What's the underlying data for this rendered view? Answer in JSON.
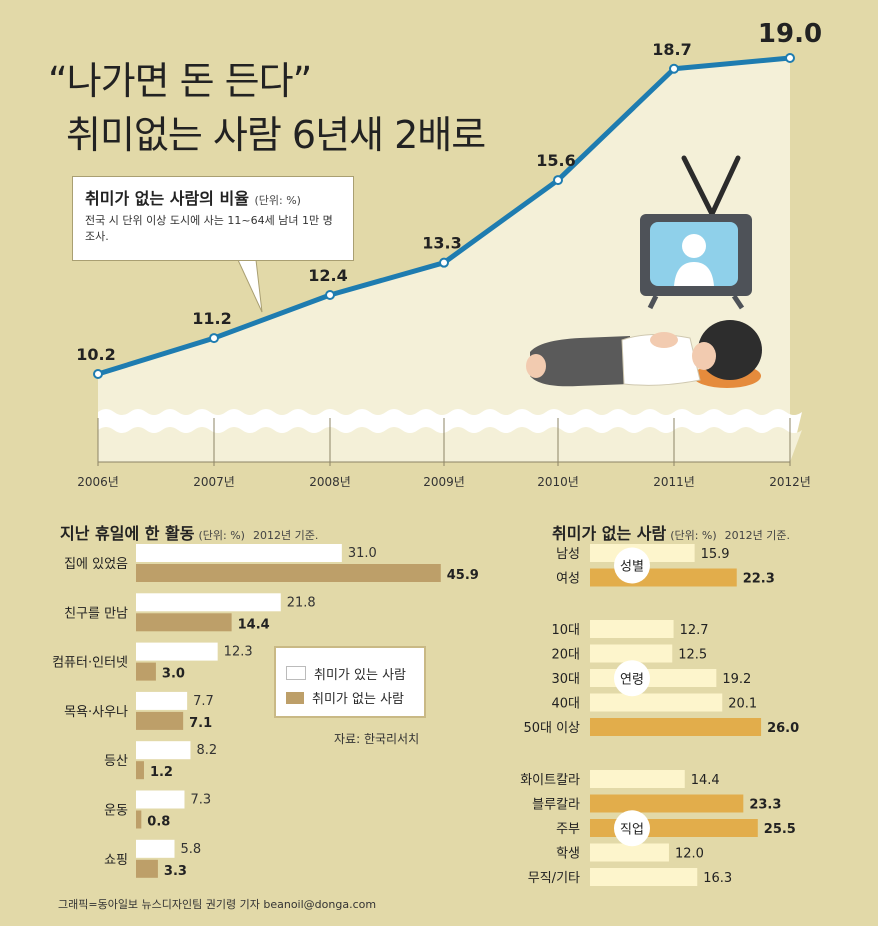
{
  "headline": {
    "line1": "“나가면 돈 든다”",
    "line2": "취미없는 사람 6년새 2배로"
  },
  "callout": {
    "title": "취미가 없는 사람의 비율",
    "unit": "(단위: %)",
    "note": "전국 시 단위 이상 도시에 사는 11~64세 남녀 1만 명 조사."
  },
  "activities_title": "지난 휴일에 한 활동",
  "activities_unit": "(단위: %)",
  "activities_basis": "2012년 기준.",
  "nohobby_title": "취미가 없는 사람",
  "nohobby_unit": "(단위: %)",
  "nohobby_basis": "2012년 기준.",
  "legend": {
    "with_hobby": "취미가 있는 사람",
    "without_hobby": "취미가 없는 사람"
  },
  "source": "자료: 한국리서치",
  "credit": "그래픽=동아일보 뉴스디자인팀 권기령 기자 beanoil@donga.com",
  "colors": {
    "background": "#e2d9a8",
    "line": "#1e7cb0",
    "bar_with": "#ffffff",
    "bar_without": "#bd9f69",
    "bar_light": "#fdf5cc",
    "bar_accent": "#e2ad4b",
    "plot_area": "#f4f0d8"
  },
  "chart_data": [
    {
      "type": "line",
      "x": [
        "2006년",
        "2007년",
        "2008년",
        "2009년",
        "2010년",
        "2011년",
        "2012년"
      ],
      "series": [
        {
          "values": [
            10.2,
            11.2,
            12.4,
            13.3,
            15.6,
            18.7,
            19.0
          ]
        }
      ]
    },
    {
      "type": "bar",
      "categories": [
        "집에 있었음",
        "친구를 만남",
        "컴퓨터·인터넷",
        "목욕·사우나",
        "등산",
        "운동",
        "쇼핑"
      ],
      "series": [
        {
          "name": "취미가 있는 사람",
          "values": [
            31.0,
            21.8,
            12.3,
            7.7,
            8.2,
            7.3,
            5.8
          ]
        },
        {
          "name": "취미가 없는 사람",
          "values": [
            45.9,
            14.4,
            3.0,
            7.1,
            1.2,
            0.8,
            3.3
          ]
        }
      ]
    },
    {
      "type": "bar",
      "groups": [
        {
          "label": "성별",
          "categories": [
            "남성",
            "여성"
          ],
          "values": [
            15.9,
            22.3
          ],
          "highlight": [
            false,
            true
          ]
        },
        {
          "label": "연령",
          "categories": [
            "10대",
            "20대",
            "30대",
            "40대",
            "50대 이상"
          ],
          "values": [
            12.7,
            12.5,
            19.2,
            20.1,
            26.0
          ],
          "highlight": [
            false,
            false,
            false,
            false,
            true
          ]
        },
        {
          "label": "직업",
          "categories": [
            "화이트칼라",
            "블루칼라",
            "주부",
            "학생",
            "무직/기타"
          ],
          "values": [
            14.4,
            23.3,
            25.5,
            12.0,
            16.3
          ],
          "highlight": [
            false,
            true,
            true,
            false,
            false
          ]
        }
      ]
    }
  ]
}
